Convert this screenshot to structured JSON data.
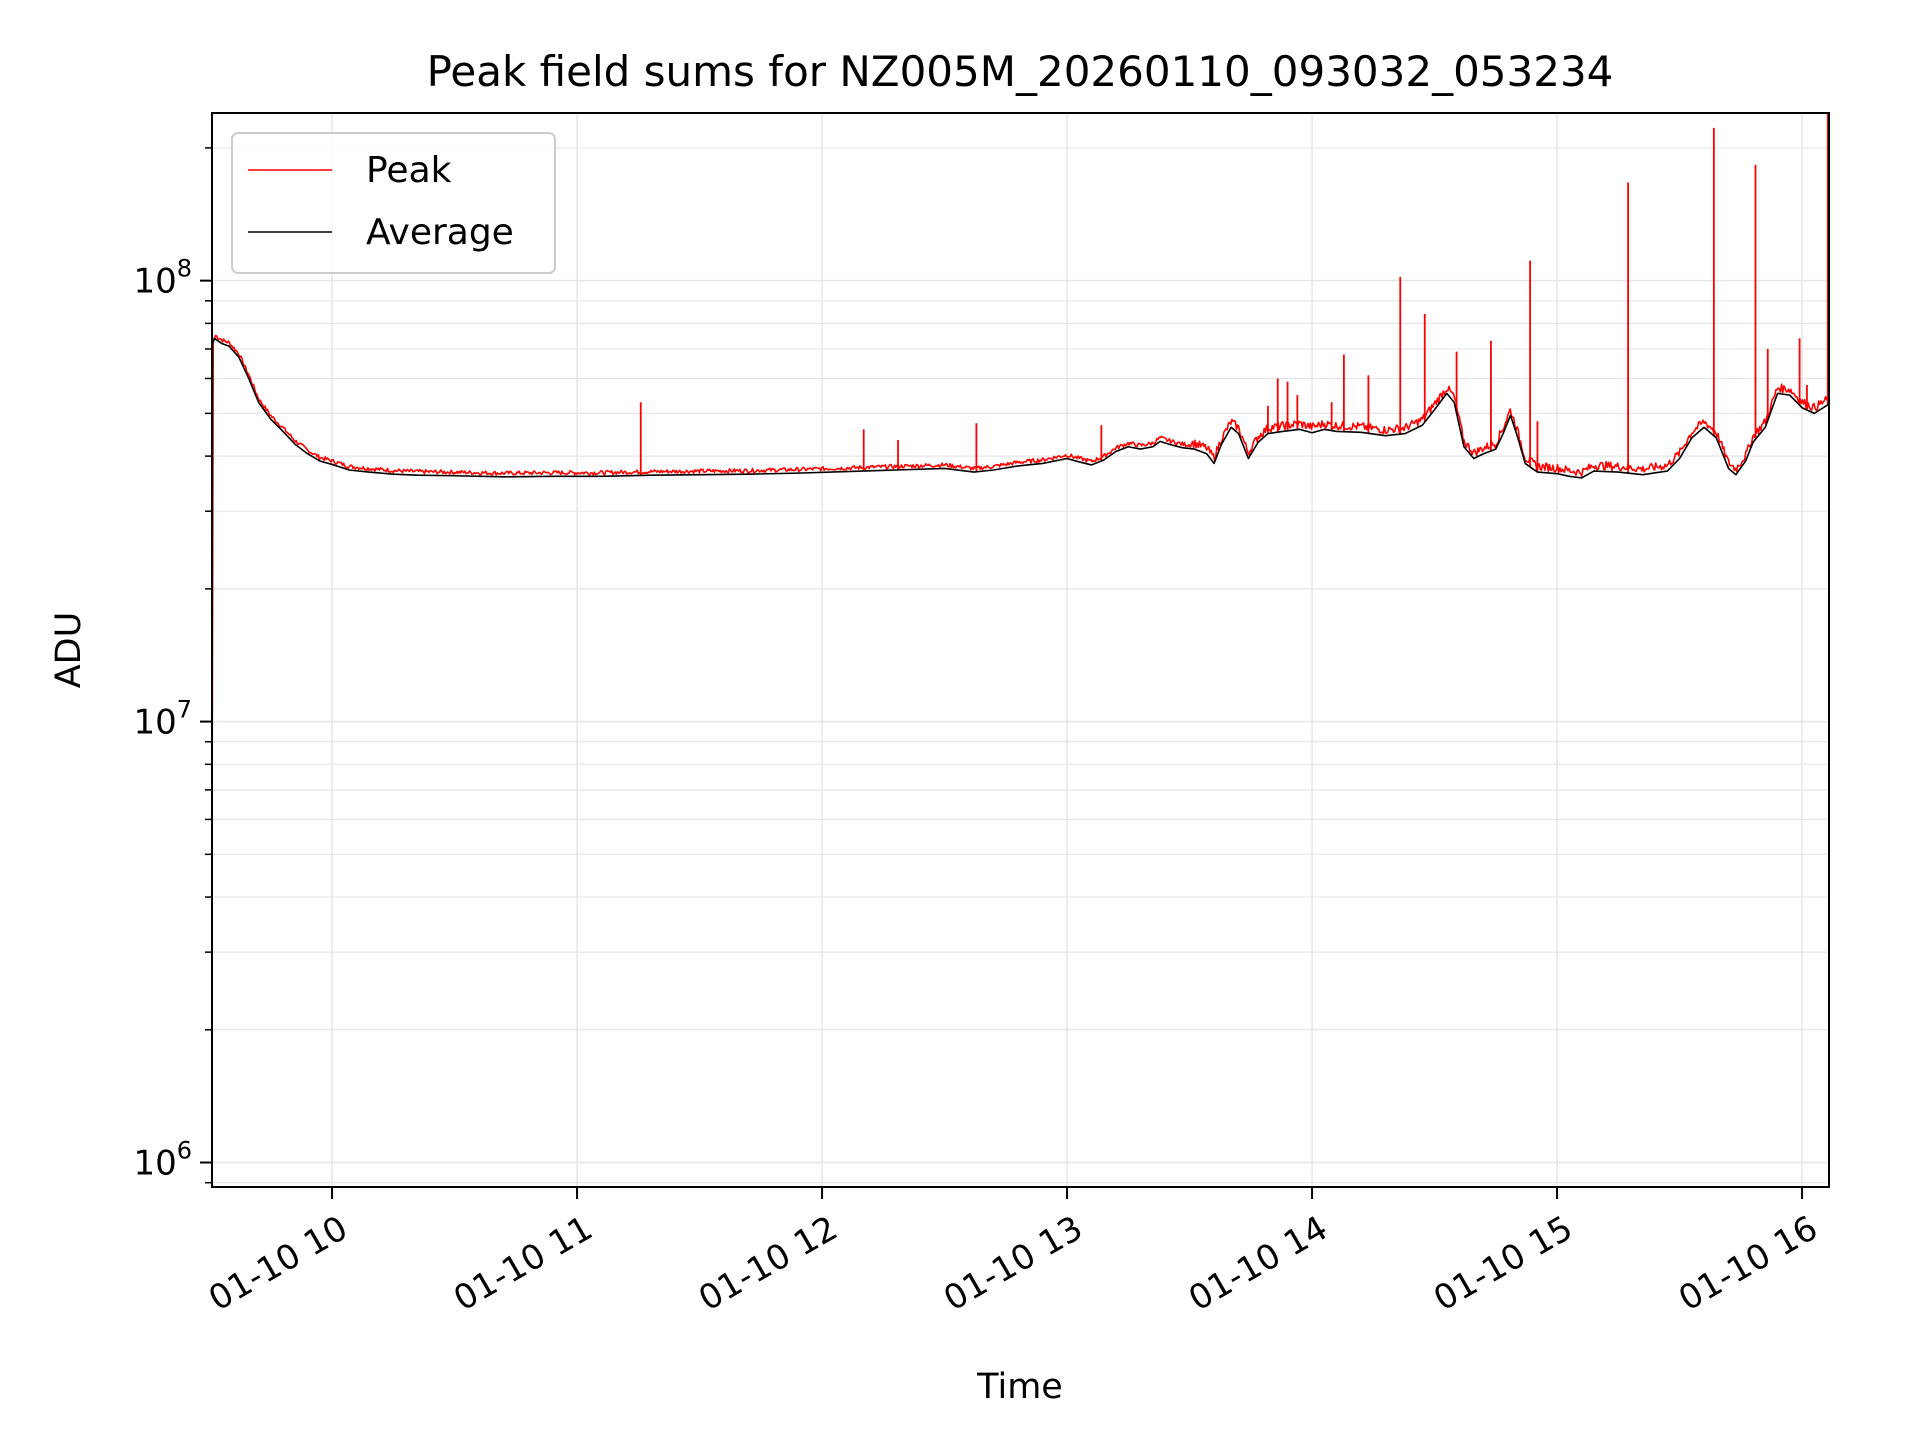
{
  "chart_data": {
    "type": "line",
    "title": "Peak field sums for NZ005M_20260110_093032_053234",
    "xlabel": "Time",
    "ylabel": "ADU",
    "yscale": "log",
    "ylim": [
      880000,
      240000000
    ],
    "xlim_hours": [
      9.51,
      16.11
    ],
    "grid": true,
    "legend_position": "upper-left",
    "x_ticks": [
      {
        "hour": 10,
        "label": "01-10 10"
      },
      {
        "hour": 11,
        "label": "01-10 11"
      },
      {
        "hour": 12,
        "label": "01-10 12"
      },
      {
        "hour": 13,
        "label": "01-10 13"
      },
      {
        "hour": 14,
        "label": "01-10 14"
      },
      {
        "hour": 15,
        "label": "01-10 15"
      },
      {
        "hour": 16,
        "label": "01-10 16"
      }
    ],
    "y_ticks": [
      {
        "value": 1000000,
        "base": "10",
        "exp": "6"
      },
      {
        "value": 10000000,
        "base": "10",
        "exp": "7"
      },
      {
        "value": 100000000,
        "base": "10",
        "exp": "8"
      }
    ],
    "series": [
      {
        "name": "Peak",
        "color": "#ff0000",
        "base": "Average",
        "spikes": [
          {
            "x": 11.26,
            "y": 53000000
          },
          {
            "x": 12.17,
            "y": 46000000
          },
          {
            "x": 12.31,
            "y": 43500000
          },
          {
            "x": 12.63,
            "y": 47500000
          },
          {
            "x": 13.14,
            "y": 47000000
          },
          {
            "x": 13.82,
            "y": 52000000
          },
          {
            "x": 13.86,
            "y": 60000000
          },
          {
            "x": 13.9,
            "y": 59000000
          },
          {
            "x": 13.94,
            "y": 55000000
          },
          {
            "x": 14.08,
            "y": 53000000
          },
          {
            "x": 14.13,
            "y": 68000000
          },
          {
            "x": 14.23,
            "y": 61000000
          },
          {
            "x": 14.36,
            "y": 102000000
          },
          {
            "x": 14.46,
            "y": 84000000
          },
          {
            "x": 14.59,
            "y": 69000000
          },
          {
            "x": 14.73,
            "y": 73000000
          },
          {
            "x": 14.89,
            "y": 111000000
          },
          {
            "x": 14.92,
            "y": 48000000
          },
          {
            "x": 15.29,
            "y": 167000000
          },
          {
            "x": 15.64,
            "y": 222000000
          },
          {
            "x": 15.81,
            "y": 183000000
          },
          {
            "x": 15.86,
            "y": 70000000
          },
          {
            "x": 15.99,
            "y": 74000000
          },
          {
            "x": 16.02,
            "y": 58000000
          },
          {
            "x": 16.105,
            "y": 240000000
          }
        ]
      },
      {
        "name": "Average",
        "color": "#000000",
        "points": [
          [
            9.51,
            5000000
          ],
          [
            9.512,
            72000000
          ],
          [
            9.52,
            74000000
          ],
          [
            9.55,
            72000000
          ],
          [
            9.58,
            71000000
          ],
          [
            9.62,
            67000000
          ],
          [
            9.66,
            60000000
          ],
          [
            9.7,
            53000000
          ],
          [
            9.75,
            48500000
          ],
          [
            9.8,
            45500000
          ],
          [
            9.85,
            42500000
          ],
          [
            9.9,
            40500000
          ],
          [
            9.95,
            39000000
          ],
          [
            10.0,
            38300000
          ],
          [
            10.07,
            37200000
          ],
          [
            10.15,
            36800000
          ],
          [
            10.25,
            36400000
          ],
          [
            10.35,
            36200000
          ],
          [
            10.5,
            36100000
          ],
          [
            10.7,
            35900000
          ],
          [
            10.9,
            36000000
          ],
          [
            11.1,
            36000000
          ],
          [
            11.3,
            36200000
          ],
          [
            11.5,
            36300000
          ],
          [
            11.7,
            36400000
          ],
          [
            11.9,
            36600000
          ],
          [
            12.1,
            36900000
          ],
          [
            12.3,
            37200000
          ],
          [
            12.5,
            37500000
          ],
          [
            12.62,
            36800000
          ],
          [
            12.7,
            37200000
          ],
          [
            12.8,
            38000000
          ],
          [
            12.9,
            38500000
          ],
          [
            13.0,
            39500000
          ],
          [
            13.05,
            38800000
          ],
          [
            13.1,
            38200000
          ],
          [
            13.15,
            39200000
          ],
          [
            13.2,
            41000000
          ],
          [
            13.25,
            42000000
          ],
          [
            13.3,
            41500000
          ],
          [
            13.35,
            42000000
          ],
          [
            13.38,
            43200000
          ],
          [
            13.42,
            42500000
          ],
          [
            13.47,
            41800000
          ],
          [
            13.52,
            41500000
          ],
          [
            13.57,
            40500000
          ],
          [
            13.6,
            38500000
          ],
          [
            13.63,
            42500000
          ],
          [
            13.67,
            46500000
          ],
          [
            13.7,
            45000000
          ],
          [
            13.74,
            39500000
          ],
          [
            13.78,
            43000000
          ],
          [
            13.82,
            45000000
          ],
          [
            13.88,
            45500000
          ],
          [
            13.95,
            46000000
          ],
          [
            14.0,
            45200000
          ],
          [
            14.05,
            46000000
          ],
          [
            14.1,
            45500000
          ],
          [
            14.2,
            45300000
          ],
          [
            14.3,
            44500000
          ],
          [
            14.38,
            45000000
          ],
          [
            14.45,
            47000000
          ],
          [
            14.5,
            51000000
          ],
          [
            14.55,
            55500000
          ],
          [
            14.58,
            53000000
          ],
          [
            14.62,
            42000000
          ],
          [
            14.66,
            39500000
          ],
          [
            14.7,
            40500000
          ],
          [
            14.75,
            41500000
          ],
          [
            14.78,
            45000000
          ],
          [
            14.81,
            49500000
          ],
          [
            14.84,
            44000000
          ],
          [
            14.87,
            38500000
          ],
          [
            14.92,
            36800000
          ],
          [
            15.0,
            36500000
          ],
          [
            15.05,
            36000000
          ],
          [
            15.1,
            35700000
          ],
          [
            15.15,
            37000000
          ],
          [
            15.25,
            36800000
          ],
          [
            15.35,
            36300000
          ],
          [
            15.45,
            37000000
          ],
          [
            15.5,
            39500000
          ],
          [
            15.55,
            44000000
          ],
          [
            15.6,
            46500000
          ],
          [
            15.65,
            44000000
          ],
          [
            15.7,
            37500000
          ],
          [
            15.73,
            36300000
          ],
          [
            15.77,
            39000000
          ],
          [
            15.8,
            43000000
          ],
          [
            15.85,
            46500000
          ],
          [
            15.9,
            55500000
          ],
          [
            15.95,
            55000000
          ],
          [
            16.0,
            51500000
          ],
          [
            16.05,
            50000000
          ],
          [
            16.11,
            52500000
          ]
        ]
      }
    ]
  }
}
